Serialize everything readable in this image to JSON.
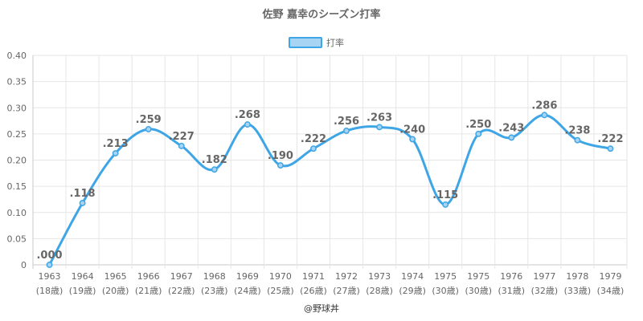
{
  "colors": {
    "line": "#3ea6e6",
    "fill": "#a6d4f2",
    "text": "#666666",
    "grid": "#e6e6e6"
  },
  "chart_data": {
    "type": "line",
    "title": "佐野 嘉幸のシーズン打率",
    "legend": {
      "label": "打率",
      "position": "top"
    },
    "categories": [
      "1963",
      "1964",
      "1965",
      "1966",
      "1967",
      "1968",
      "1969",
      "1970",
      "1971",
      "1972",
      "1973",
      "1974",
      "1975",
      "1975",
      "1976",
      "1977",
      "1978",
      "1979"
    ],
    "sublabels": [
      "(18歳)",
      "(19歳)",
      "(20歳)",
      "(21歳)",
      "(22歳)",
      "(23歳)",
      "(24歳)",
      "(25歳)",
      "(26歳)",
      "(27歳)",
      "(28歳)",
      "(29歳)",
      "(30歳)",
      "(30歳)",
      "(31歳)",
      "(32歳)",
      "(33歳)",
      "(34歳)"
    ],
    "values": [
      0.0,
      0.118,
      0.213,
      0.259,
      0.227,
      0.182,
      0.268,
      0.19,
      0.222,
      0.256,
      0.263,
      0.24,
      0.115,
      0.25,
      0.243,
      0.286,
      0.238,
      0.222
    ],
    "value_labels": [
      ".000",
      ".118",
      ".213",
      ".259",
      ".227",
      ".182",
      ".268",
      ".190",
      ".222",
      ".256",
      ".263",
      ".240",
      ".115",
      ".250",
      ".243",
      ".286",
      ".238",
      ".222"
    ],
    "ylim": [
      0,
      0.4
    ],
    "yticks": [
      "0",
      "0.05",
      "0.10",
      "0.15",
      "0.20",
      "0.25",
      "0.30",
      "0.35",
      "0.40"
    ],
    "grid": true
  },
  "credit": "@野球丼"
}
